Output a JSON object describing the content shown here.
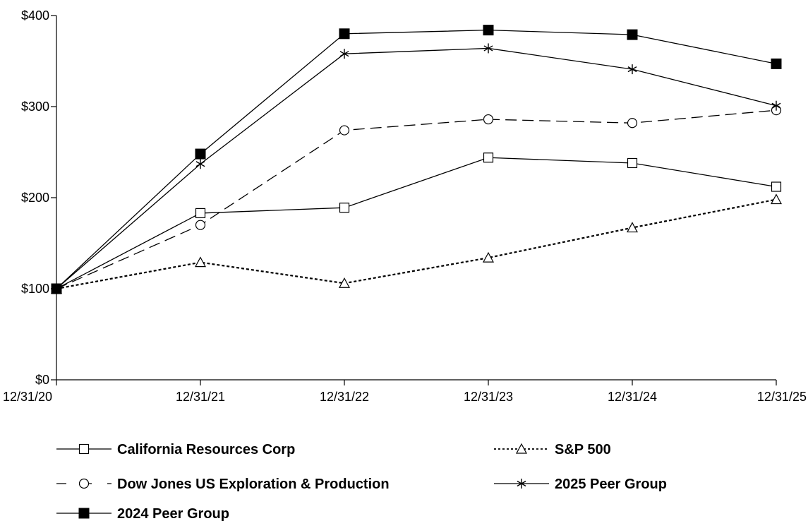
{
  "chart_data": {
    "type": "line",
    "title": "",
    "xlabel": "",
    "ylabel": "",
    "categories": [
      "12/31/20",
      "12/31/21",
      "12/31/22",
      "12/31/23",
      "12/31/24",
      "12/31/25"
    ],
    "y_ticks": [
      "$0",
      "$100",
      "$200",
      "$300",
      "$400"
    ],
    "ylim": [
      0,
      400
    ],
    "grid": false,
    "legend_position": "bottom",
    "series": [
      {
        "name": "California Resources Corp",
        "values": [
          100,
          183,
          189,
          244,
          238,
          212
        ],
        "marker": "open-square",
        "line_style": "solid"
      },
      {
        "name": "S&P 500",
        "values": [
          100,
          129,
          106,
          134,
          167,
          198
        ],
        "marker": "open-triangle",
        "line_style": "dotted"
      },
      {
        "name": "Dow Jones US Exploration & Production",
        "values": [
          100,
          170,
          274,
          286,
          282,
          296
        ],
        "marker": "open-circle",
        "line_style": "dashed"
      },
      {
        "name": "2025 Peer Group",
        "values": [
          100,
          237,
          358,
          364,
          341,
          301
        ],
        "marker": "asterisk",
        "line_style": "solid"
      },
      {
        "name": "2024 Peer Group",
        "values": [
          100,
          248,
          380,
          384,
          379,
          347
        ],
        "marker": "filled-square",
        "line_style": "solid"
      }
    ]
  }
}
